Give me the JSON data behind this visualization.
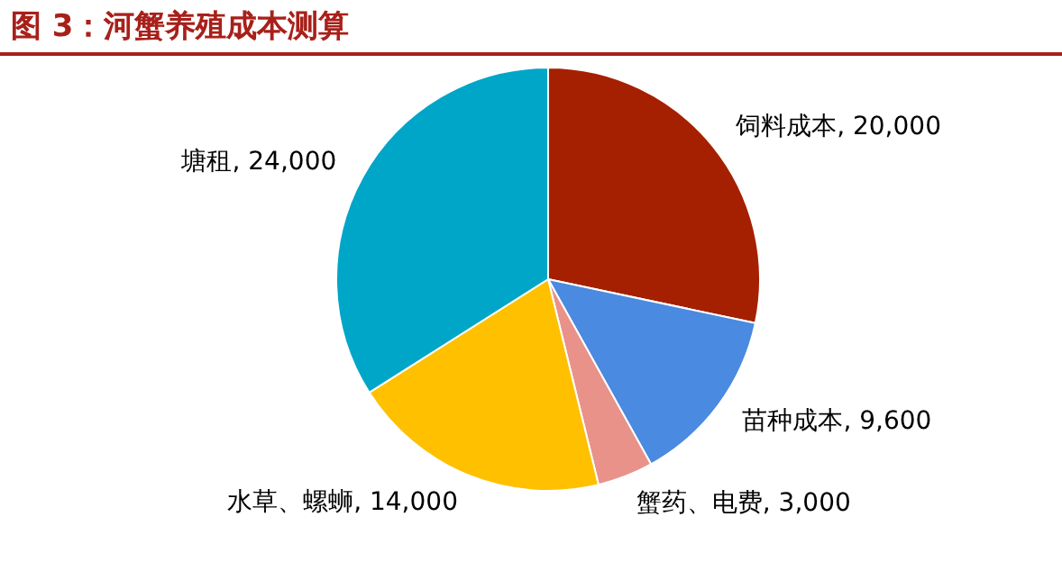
{
  "chart_data": {
    "type": "pie",
    "title": "图 3：河蟹养殖成本测算",
    "categories": [
      "饲料成本",
      "苗种成本",
      "蟹药、电费",
      "水草、螺蛳",
      "塘租"
    ],
    "values": [
      20000,
      9600,
      3000,
      14000,
      24000
    ],
    "value_labels": [
      "20,000",
      "9,600",
      "3,000",
      "14,000",
      "24,000"
    ],
    "colors": [
      "#a52000",
      "#4a8ae0",
      "#e8928a",
      "#ffc000",
      "#00a6c8"
    ],
    "legend": false
  }
}
